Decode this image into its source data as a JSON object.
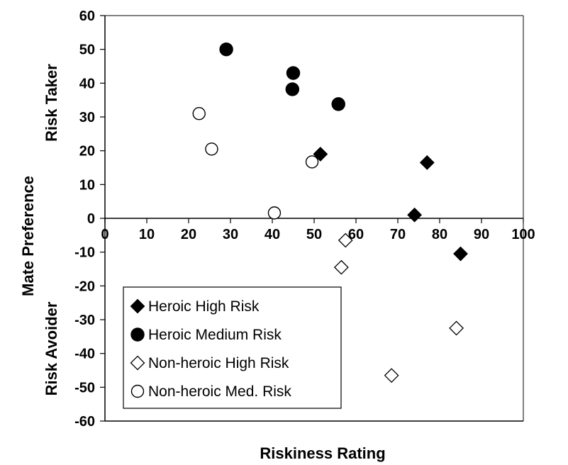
{
  "chart_data": {
    "type": "scatter",
    "xlabel": "Riskiness Rating",
    "ylabel": "Mate Preference",
    "ylabel_top": "Risk Taker",
    "ylabel_bottom": "Risk Avoider",
    "xlim": [
      0,
      100
    ],
    "ylim": [
      -60,
      60
    ],
    "x_ticks": [
      "0",
      "10",
      "20",
      "30",
      "40",
      "50",
      "60",
      "70",
      "80",
      "90",
      "100"
    ],
    "y_ticks": [
      "60",
      "50",
      "40",
      "30",
      "20",
      "10",
      "0",
      "-10",
      "-20",
      "-30",
      "-40",
      "-50",
      "-60"
    ],
    "grid": false,
    "legend_position": "bottom-left",
    "series": [
      {
        "name": "Heroic High Risk",
        "marker": "diamond-filled",
        "points": [
          [
            51.5,
            19
          ],
          [
            77,
            16.5
          ],
          [
            74,
            1
          ],
          [
            85,
            -10.5
          ]
        ]
      },
      {
        "name": "Heroic Medium Risk",
        "marker": "circle-filled",
        "points": [
          [
            29,
            50
          ],
          [
            45,
            43
          ],
          [
            44.8,
            38.2
          ],
          [
            55.8,
            33.8
          ]
        ]
      },
      {
        "name": "Non-heroic High Risk",
        "marker": "diamond-open",
        "points": [
          [
            57.5,
            -6.5
          ],
          [
            56.5,
            -14.5
          ],
          [
            84,
            -32.5
          ],
          [
            68.5,
            -46.5
          ]
        ]
      },
      {
        "name": "Non-heroic Med. Risk",
        "marker": "circle-open",
        "points": [
          [
            22.5,
            31
          ],
          [
            25.5,
            20.5
          ],
          [
            49.5,
            16.7
          ],
          [
            40.5,
            1.6
          ]
        ]
      }
    ]
  }
}
